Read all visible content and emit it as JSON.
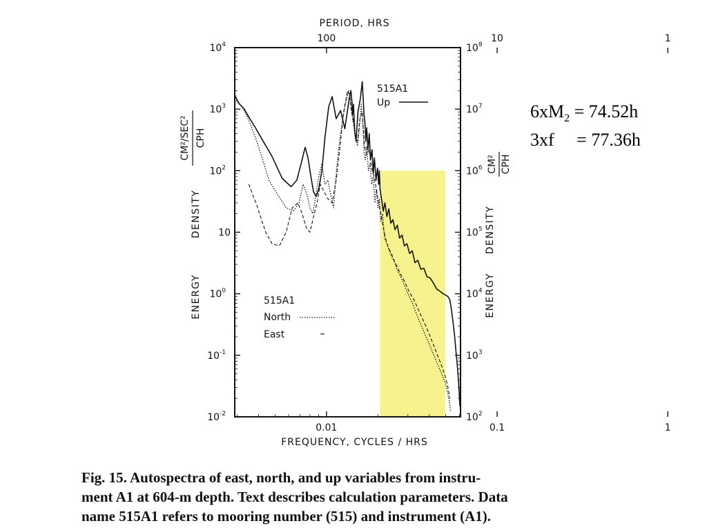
{
  "chart_data": {
    "type": "line",
    "x_scale": "log",
    "y_scale": "log",
    "xlim": [
      0.0029,
      0.061
    ],
    "ylim": [
      0.01,
      10000
    ],
    "top_axis": {
      "label": "PERIOD, HRS",
      "ticks": [
        {
          "value": 100,
          "label": "100"
        },
        {
          "value": 10,
          "label": "10"
        },
        {
          "value": 1,
          "label": "1"
        }
      ]
    },
    "bottom_axis": {
      "label": "FREQUENCY, CYCLES / HRS",
      "ticks": [
        {
          "value": 0.01,
          "label": "0.01"
        },
        {
          "value": 0.1,
          "label": "0.1"
        },
        {
          "value": 1,
          "label": "1"
        }
      ]
    },
    "left_axis": {
      "label_words": [
        "ENERGY",
        "DENSITY"
      ],
      "unit_numerator": "CM²/SEC²",
      "unit_denominator": "CPH",
      "ticks": [
        {
          "value": 10000,
          "base": "10",
          "exp": "4"
        },
        {
          "value": 1000,
          "base": "10",
          "exp": "3"
        },
        {
          "value": 100,
          "base": "10",
          "exp": "2"
        },
        {
          "value": 10,
          "base": "10",
          "exp": ""
        },
        {
          "value": 1,
          "base": "10",
          "exp": "0"
        },
        {
          "value": 0.1,
          "base": "10",
          "exp": "-1"
        },
        {
          "value": 0.01,
          "base": "10",
          "exp": "-2"
        }
      ]
    },
    "right_axis": {
      "label_words": [
        "ENERGY",
        "DENSITY"
      ],
      "unit_numerator": "CM²",
      "unit_denominator": "CPH",
      "ticks": [
        {
          "value": 100000000,
          "base": "10",
          "exp": "8"
        },
        {
          "value": 10000000,
          "base": "10",
          "exp": "7"
        },
        {
          "value": 1000000,
          "base": "10",
          "exp": "6"
        },
        {
          "value": 100000,
          "base": "10",
          "exp": "5"
        },
        {
          "value": 10000,
          "base": "10",
          "exp": "4"
        },
        {
          "value": 1000,
          "base": "10",
          "exp": "3"
        },
        {
          "value": 100,
          "base": "10",
          "exp": "2"
        }
      ]
    },
    "legend_up": {
      "title": "515A1",
      "entries": [
        {
          "name": "Up",
          "style": "solid"
        }
      ]
    },
    "legend_horizontal": {
      "title": "515A1",
      "entries": [
        {
          "name": "North",
          "style": "dotted"
        },
        {
          "name": "East",
          "style": "dashed"
        }
      ]
    },
    "highlight_band": {
      "x_from": 0.0206,
      "x_to": 0.0496,
      "y_from": 0.01,
      "y_to": 100,
      "color": "#f5f07a"
    },
    "series": [
      {
        "name": "Up",
        "style": "solid",
        "x": [
          0.0029,
          0.003,
          0.0031,
          0.0033,
          0.0035,
          0.0038,
          0.0042,
          0.0048,
          0.0055,
          0.0062,
          0.0067,
          0.0071,
          0.0075,
          0.0078,
          0.0081,
          0.0084,
          0.0087,
          0.009,
          0.0094,
          0.0098,
          0.0103,
          0.0108,
          0.0114,
          0.0121,
          0.0128,
          0.0136,
          0.0139,
          0.0141,
          0.0142,
          0.0144,
          0.0146,
          0.0149,
          0.0153,
          0.0158,
          0.0162,
          0.0166,
          0.0168,
          0.017,
          0.0172,
          0.0175,
          0.0178,
          0.0181,
          0.0185,
          0.0188,
          0.0191,
          0.0195,
          0.0199,
          0.0202,
          0.0204,
          0.0206,
          0.021,
          0.0215,
          0.022,
          0.0226,
          0.0232,
          0.0238,
          0.0245,
          0.0252,
          0.026,
          0.0268,
          0.0277,
          0.0286,
          0.0296,
          0.0307,
          0.0318,
          0.033,
          0.0343,
          0.0357,
          0.0372,
          0.0388,
          0.0405,
          0.0423,
          0.0442,
          0.0462,
          0.0482,
          0.05,
          0.0515,
          0.0528,
          0.054,
          0.0551,
          0.0562,
          0.0573,
          0.0584,
          0.0595,
          0.0605
        ],
        "y": [
          1700,
          1400,
          1200,
          1000,
          750,
          520,
          320,
          170,
          75,
          55,
          70,
          130,
          240,
          160,
          80,
          45,
          38,
          50,
          100,
          350,
          1100,
          1600,
          700,
          950,
          480,
          1500,
          2000,
          1300,
          800,
          1200,
          450,
          300,
          900,
          1500,
          2800,
          800,
          600,
          300,
          500,
          220,
          400,
          150,
          220,
          90,
          160,
          70,
          110,
          60,
          100,
          50,
          35,
          22,
          30,
          18,
          24,
          14,
          16,
          11,
          13,
          8,
          9,
          6,
          6.5,
          4.5,
          5,
          3.2,
          3.5,
          2.5,
          2.6,
          1.9,
          1.8,
          1.5,
          1.2,
          1.1,
          1.0,
          0.95,
          0.9,
          0.8,
          0.55,
          0.35,
          0.22,
          0.12,
          0.07,
          0.035,
          0.015
        ]
      },
      {
        "name": "North",
        "style": "dotted",
        "x": [
          0.0029,
          0.003,
          0.0032,
          0.0034,
          0.0036,
          0.0039,
          0.0042,
          0.0046,
          0.0052,
          0.0058,
          0.0064,
          0.0069,
          0.0073,
          0.0077,
          0.008,
          0.0083,
          0.0086,
          0.009,
          0.0094,
          0.0098,
          0.0102,
          0.0106,
          0.011,
          0.0115,
          0.0121,
          0.0128,
          0.0135,
          0.0138,
          0.0141,
          0.0143,
          0.0145,
          0.0148,
          0.0152,
          0.0156,
          0.016,
          0.0163,
          0.0166,
          0.0169,
          0.0172,
          0.0176,
          0.018,
          0.0184,
          0.0188,
          0.0192,
          0.0196,
          0.02,
          0.0204,
          0.0208,
          0.0213,
          0.0219,
          0.0226,
          0.0233,
          0.0241,
          0.025,
          0.0259,
          0.0269,
          0.028,
          0.0292,
          0.0305,
          0.0319,
          0.0334,
          0.035,
          0.0366,
          0.0383,
          0.0401,
          0.042,
          0.044,
          0.046,
          0.048,
          0.0498,
          0.0512,
          0.0524,
          0.0535
        ],
        "y": [
          1500,
          1300,
          1100,
          800,
          550,
          300,
          160,
          70,
          40,
          25,
          22,
          30,
          60,
          40,
          25,
          20,
          35,
          80,
          130,
          60,
          70,
          40,
          25,
          120,
          400,
          1100,
          2000,
          1400,
          900,
          600,
          800,
          350,
          250,
          500,
          1200,
          700,
          200,
          150,
          250,
          100,
          130,
          60,
          80,
          30,
          50,
          25,
          35,
          15,
          20,
          8,
          6.5,
          5,
          4,
          3.3,
          2.5,
          2.0,
          1.6,
          1.2,
          0.9,
          0.7,
          0.5,
          0.36,
          0.27,
          0.2,
          0.15,
          0.11,
          0.08,
          0.06,
          0.045,
          0.035,
          0.025,
          0.018,
          0.012
        ]
      },
      {
        "name": "East",
        "style": "dashed",
        "x": [
          0.0035,
          0.0036,
          0.0037,
          0.0039,
          0.0041,
          0.0044,
          0.0048,
          0.0053,
          0.0058,
          0.0063,
          0.0068,
          0.0072,
          0.0076,
          0.008,
          0.0084,
          0.0088,
          0.0092,
          0.0097,
          0.0102,
          0.0108,
          0.0114,
          0.012,
          0.0126,
          0.0133,
          0.0137,
          0.014,
          0.0143,
          0.0147,
          0.0152,
          0.0157,
          0.0162,
          0.0167,
          0.0172,
          0.0178,
          0.0184,
          0.019,
          0.0196,
          0.0202,
          0.0208,
          0.0215,
          0.0223,
          0.0231,
          0.024,
          0.025,
          0.026,
          0.0271,
          0.0283,
          0.0296,
          0.031,
          0.0325,
          0.0341,
          0.0358,
          0.0376,
          0.0395,
          0.0415,
          0.0436,
          0.0458,
          0.048,
          0.05,
          0.0515,
          0.0528
        ],
        "y": [
          60,
          50,
          40,
          28,
          18,
          10,
          6.5,
          6,
          10,
          25,
          30,
          20,
          12,
          10,
          18,
          30,
          60,
          45,
          35,
          30,
          70,
          250,
          900,
          2000,
          1600,
          900,
          700,
          400,
          300,
          700,
          900,
          250,
          180,
          220,
          110,
          80,
          50,
          30,
          20,
          12,
          7.5,
          5.5,
          4.5,
          3.4,
          2.7,
          2.1,
          1.7,
          1.3,
          1.0,
          0.8,
          0.6,
          0.44,
          0.33,
          0.24,
          0.17,
          0.12,
          0.085,
          0.06,
          0.043,
          0.03,
          0.02
        ]
      }
    ]
  },
  "annotations": {
    "line1_pre": "6xM",
    "line1_sub": "2",
    "line1_post": " = 74.52h",
    "line2": "3xf     = 77.36h"
  },
  "caption": {
    "line1": "Fig. 15.   Autospectra of east, north, and up variables from instru-",
    "line2": "ment A1 at 604-m depth. Text describes calculation parameters. Data",
    "line3": "name 515A1 refers to mooring number (515) and instrument (A1)."
  }
}
